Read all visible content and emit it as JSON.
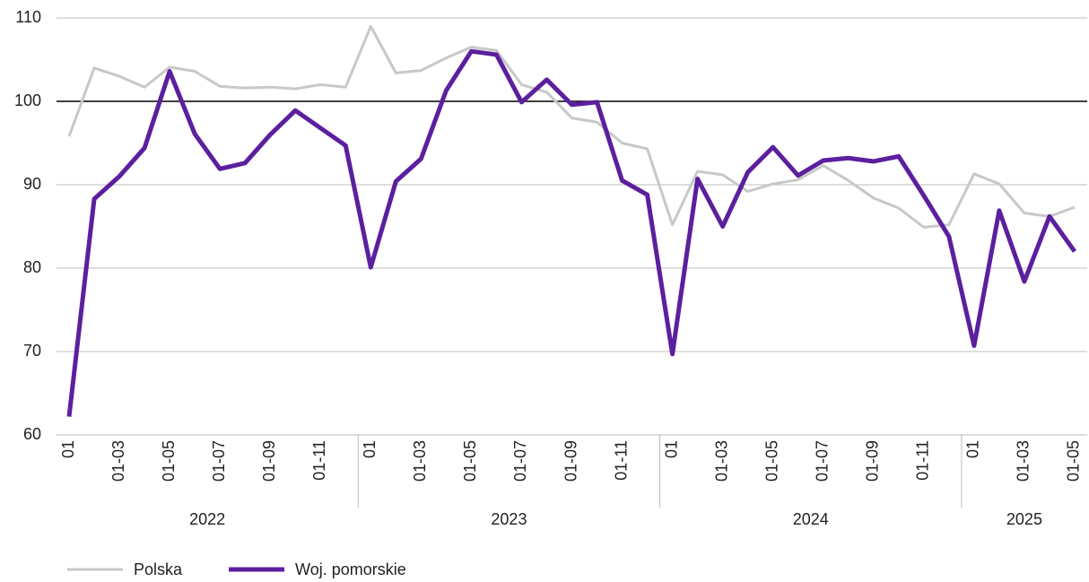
{
  "chart_data": {
    "type": "line",
    "categories": [
      "01",
      null,
      "01-03",
      null,
      "01-05",
      null,
      "01-07",
      null,
      "01-09",
      null,
      "01-11",
      null,
      "01",
      null,
      "01-03",
      null,
      "01-05",
      null,
      "01-07",
      null,
      "01-09",
      null,
      "01-11",
      null,
      "01",
      null,
      "01-03",
      null,
      "01-05",
      null,
      "01-07",
      null,
      "01-09",
      null,
      "01-11",
      null,
      "01",
      null,
      "01-03",
      null,
      "01-05"
    ],
    "year_groups": [
      "2022",
      "2023",
      "2024",
      "2025"
    ],
    "series": [
      {
        "name": "Polska",
        "color": "#c8c8c8",
        "values": [
          95.8,
          104,
          103,
          101.7,
          104.1,
          103.6,
          101.8,
          101.6,
          101.7,
          101.5,
          102,
          101.7,
          109,
          103.4,
          103.7,
          105.2,
          106.5,
          106.1,
          102,
          101.1,
          98,
          97.5,
          95,
          94.3,
          85.2,
          91.6,
          91.2,
          89.2,
          90.1,
          90.6,
          92.3,
          90.5,
          88.4,
          87.2,
          84.9,
          85.2,
          91.3,
          90.1,
          86.6,
          86.2,
          87.3
        ]
      },
      {
        "name": "Woj. pomorskie",
        "color": "#5c1f9e",
        "values": [
          62.2,
          88.3,
          91,
          94.4,
          103.6,
          96.1,
          91.9,
          92.6,
          96,
          98.9,
          96.8,
          94.7,
          80.1,
          90.4,
          93.1,
          101.3,
          106,
          105.6,
          99.9,
          102.6,
          99.6,
          99.9,
          90.5,
          88.8,
          69.7,
          90.7,
          85,
          91.5,
          94.5,
          91.1,
          92.9,
          93.2,
          92.8,
          93.4,
          88.7,
          83.8,
          70.7,
          86.9,
          78.4,
          86.2,
          82
        ]
      }
    ],
    "ylim": [
      60,
      110
    ],
    "yticks": [
      60,
      70,
      80,
      90,
      100,
      110
    ],
    "grid": true,
    "reference_line": 100,
    "legend": "bottom-left"
  }
}
